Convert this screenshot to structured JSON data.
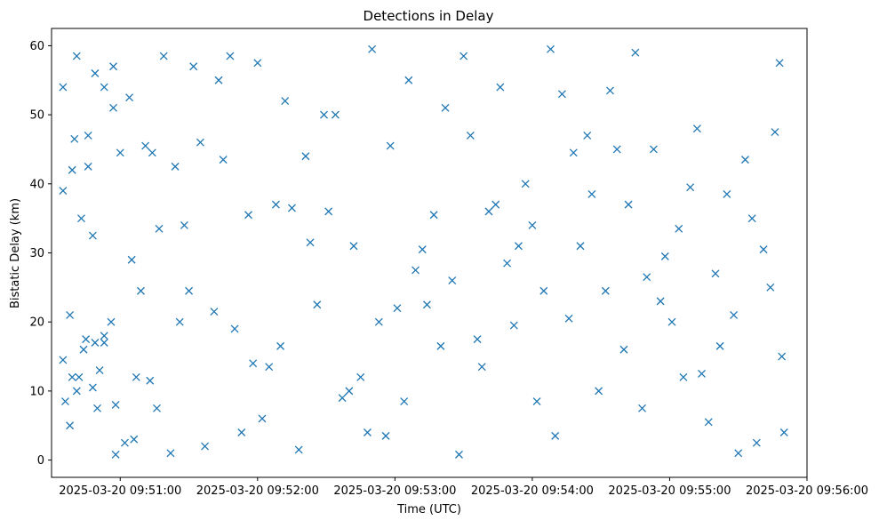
{
  "chart_data": {
    "type": "scatter",
    "title": "Detections in Delay",
    "xlabel": "Time (UTC)",
    "ylabel": "Bistatic Delay (km)",
    "x_tick_labels": [
      "2025-03-20 09:51:00",
      "2025-03-20 09:52:00",
      "2025-03-20 09:53:00",
      "2025-03-20 09:54:00",
      "2025-03-20 09:55:00",
      "2025-03-20 09:56:00"
    ],
    "y_ticks": [
      0,
      10,
      20,
      30,
      40,
      50,
      60
    ],
    "xlim": [
      "2025-03-20 09:50:30",
      "2025-03-20 09:56:00"
    ],
    "ylim": [
      -2.5,
      62.5
    ],
    "marker": "x",
    "marker_color": "#1f77b4",
    "grid": false,
    "x": [
      "09:50:35",
      "09:50:35",
      "09:50:35",
      "09:50:36",
      "09:50:38",
      "09:50:38",
      "09:50:39",
      "09:50:39",
      "09:50:40",
      "09:50:41",
      "09:50:41",
      "09:50:42",
      "09:50:43",
      "09:50:44",
      "09:50:45",
      "09:50:46",
      "09:50:46",
      "09:50:48",
      "09:50:48",
      "09:50:49",
      "09:50:49",
      "09:50:50",
      "09:50:51",
      "09:50:53",
      "09:50:53",
      "09:50:53",
      "09:50:56",
      "09:50:57",
      "09:50:57",
      "09:50:58",
      "09:50:58",
      "09:51:00",
      "09:51:02",
      "09:51:04",
      "09:51:05",
      "09:51:06",
      "09:51:07",
      "09:51:09",
      "09:51:11",
      "09:51:13",
      "09:51:14",
      "09:51:16",
      "09:51:17",
      "09:51:19",
      "09:51:22",
      "09:51:24",
      "09:51:26",
      "09:51:28",
      "09:51:30",
      "09:51:32",
      "09:51:35",
      "09:51:37",
      "09:51:41",
      "09:51:43",
      "09:51:45",
      "09:51:48",
      "09:51:50",
      "09:51:53",
      "09:51:56",
      "09:51:58",
      "09:52:00",
      "09:52:02",
      "09:52:05",
      "09:52:08",
      "09:52:10",
      "09:52:12",
      "09:52:15",
      "09:52:18",
      "09:52:21",
      "09:52:23",
      "09:52:26",
      "09:52:29",
      "09:52:31",
      "09:52:34",
      "09:52:37",
      "09:52:40",
      "09:52:42",
      "09:52:45",
      "09:52:48",
      "09:52:50",
      "09:52:53",
      "09:52:56",
      "09:52:58",
      "09:53:01",
      "09:53:04",
      "09:53:06",
      "09:53:09",
      "09:53:12",
      "09:53:14",
      "09:53:17",
      "09:53:20",
      "09:53:22",
      "09:53:25",
      "09:53:28",
      "09:53:30",
      "09:53:33",
      "09:53:36",
      "09:53:38",
      "09:53:41",
      "09:53:44",
      "09:53:46",
      "09:53:49",
      "09:53:52",
      "09:53:54",
      "09:53:57",
      "09:54:00",
      "09:54:02",
      "09:54:05",
      "09:54:08",
      "09:54:10",
      "09:54:13",
      "09:54:16",
      "09:54:18",
      "09:54:21",
      "09:54:24",
      "09:54:26",
      "09:54:29",
      "09:54:32",
      "09:54:34",
      "09:54:37",
      "09:54:40",
      "09:54:42",
      "09:54:45",
      "09:54:48",
      "09:54:50",
      "09:54:53",
      "09:54:56",
      "09:54:58",
      "09:55:01",
      "09:55:04",
      "09:55:06",
      "09:55:09",
      "09:55:12",
      "09:55:14",
      "09:55:17",
      "09:55:20",
      "09:55:22",
      "09:55:25",
      "09:55:28",
      "09:55:30",
      "09:55:33",
      "09:55:36",
      "09:55:38",
      "09:55:41",
      "09:55:44",
      "09:55:46",
      "09:55:48",
      "09:55:49",
      "09:55:50"
    ],
    "y": [
      54,
      39,
      14.5,
      8.5,
      21,
      5,
      42,
      12,
      46.5,
      10,
      58.5,
      12,
      35,
      16,
      17.5,
      47,
      42.5,
      32.5,
      10.5,
      17,
      56,
      7.5,
      13,
      54,
      17,
      18,
      20,
      51,
      57,
      0.8,
      8,
      44.5,
      2.5,
      52.5,
      29,
      3,
      12,
      24.5,
      45.5,
      11.5,
      44.5,
      7.5,
      33.5,
      58.5,
      1,
      42.5,
      20,
      34,
      24.5,
      57,
      46,
      2,
      21.5,
      55,
      43.5,
      58.5,
      19,
      4,
      35.5,
      14,
      57.5,
      6,
      13.5,
      37,
      16.5,
      52,
      36.5,
      1.5,
      44,
      31.5,
      22.5,
      50,
      36,
      50,
      9,
      10,
      31,
      12,
      4,
      59.5,
      20,
      3.5,
      45.5,
      22,
      8.5,
      55,
      27.5,
      30.5,
      22.5,
      35.5,
      16.5,
      51,
      26,
      0.8,
      58.5,
      47,
      17.5,
      13.5,
      36,
      37,
      54,
      28.5,
      19.5,
      31,
      40,
      34,
      8.5,
      24.5,
      59.5,
      3.5,
      53,
      20.5,
      44.5,
      31,
      47,
      38.5,
      10,
      24.5,
      53.5,
      45,
      16,
      37,
      59,
      7.5,
      26.5,
      45,
      23,
      29.5,
      20,
      33.5,
      12,
      39.5,
      48,
      12.5,
      5.5,
      27,
      16.5,
      38.5,
      21,
      1,
      43.5,
      35,
      2.5,
      30.5,
      25,
      47.5,
      57.5,
      15,
      4
    ]
  }
}
